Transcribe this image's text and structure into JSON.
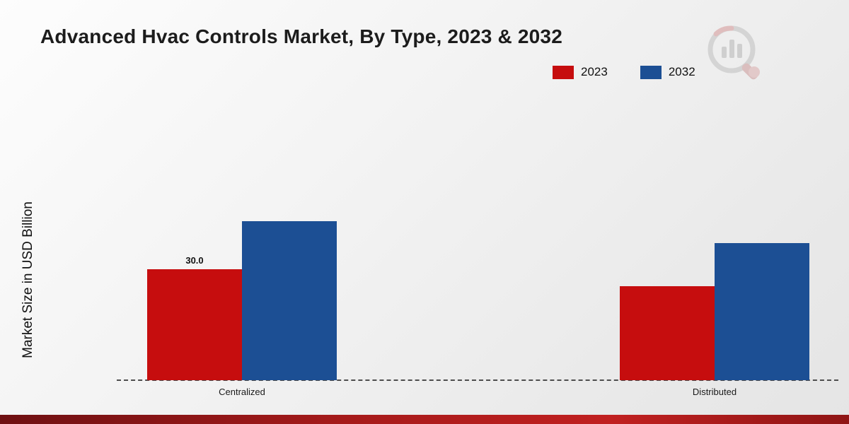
{
  "title": "Advanced Hvac Controls Market, By Type, 2023 & 2032",
  "y_axis_label": "Market Size in USD Billion",
  "legend": [
    {
      "label": "2023",
      "color": "#c60d0e"
    },
    {
      "label": "2032",
      "color": "#1c4f94"
    }
  ],
  "chart_data": {
    "type": "bar",
    "categories": [
      "Centralized",
      "Distributed"
    ],
    "series": [
      {
        "name": "2023",
        "color": "#c60d0e",
        "values": [
          30.0,
          25.5
        ]
      },
      {
        "name": "2032",
        "color": "#1c4f94",
        "values": [
          43.0,
          37.0
        ]
      }
    ],
    "title": "Advanced Hvac Controls Market, By Type, 2023 & 2032",
    "xlabel": "",
    "ylabel": "Market Size in USD Billion",
    "ylim": [
      0,
      45
    ],
    "grid": false,
    "legend_position": "top-right",
    "annotations": [
      {
        "series": "2023",
        "category": "Centralized",
        "text": "30.0"
      }
    ]
  }
}
